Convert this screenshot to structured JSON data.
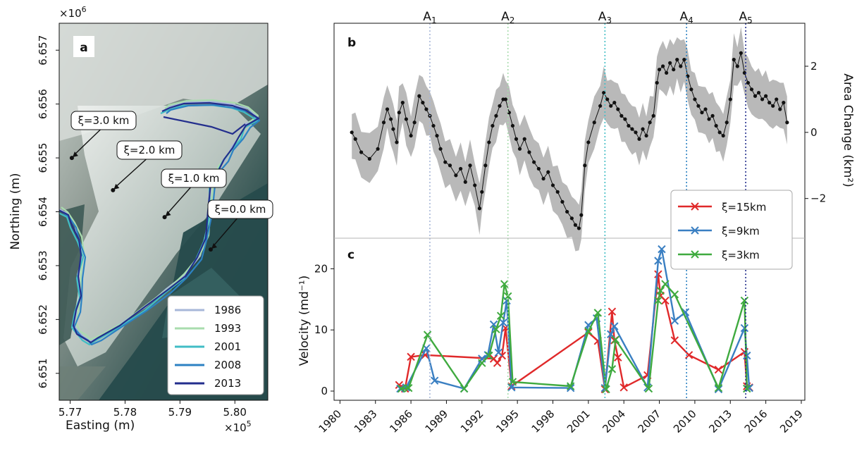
{
  "panel_a": {
    "label": "a",
    "xlabel": "Easting (m)",
    "ylabel": "Northing (m)",
    "x_multiplier": "×10^5",
    "y_multiplier": "×10^6",
    "x_ticks": [
      "5.77",
      "5.78",
      "5.79",
      "5.80"
    ],
    "y_ticks": [
      "6.651",
      "6.652",
      "6.653",
      "6.654",
      "6.655",
      "6.656",
      "6.657"
    ],
    "xlim": [
      5.768,
      5.806
    ],
    "ylim": [
      6.6505,
      6.6575
    ],
    "annotations": [
      {
        "text": "ξ=3.0 km",
        "point": [
          5.7703,
          6.655
        ]
      },
      {
        "text": "ξ=2.0 km",
        "point": [
          5.7778,
          6.6544
        ]
      },
      {
        "text": "ξ=1.0 km",
        "point": [
          5.7872,
          6.6539
        ]
      },
      {
        "text": "ξ=0.0 km",
        "point": [
          5.7956,
          6.6533
        ]
      }
    ],
    "legend": [
      {
        "label": "1986",
        "color": "#a7b7d9"
      },
      {
        "label": "1993",
        "color": "#a9dcae"
      },
      {
        "label": "2001",
        "color": "#41bdc5"
      },
      {
        "label": "2008",
        "color": "#2c82c3"
      },
      {
        "label": "2013",
        "color": "#232e8d"
      }
    ]
  },
  "chart_data": [
    {
      "type": "line",
      "panel": "b",
      "ylabel": "Area Change (km²)",
      "y_ticks": [
        "−2",
        "0",
        "2"
      ],
      "ylim": [
        -3.2,
        3.3
      ],
      "xlim": [
        1979.5,
        2019.3
      ],
      "grid": false,
      "series": [
        {
          "name": "",
          "color": "#111111",
          "band_color": "#b9b9b9",
          "x": [
            1981.0,
            1981.3,
            1981.8,
            1982.5,
            1983.2,
            1983.7,
            1984.0,
            1984.3,
            1984.5,
            1984.8,
            1985.0,
            1985.3,
            1985.6,
            1986.0,
            1986.3,
            1986.7,
            1987.0,
            1987.3,
            1987.6,
            1987.9,
            1988.2,
            1988.5,
            1988.9,
            1989.3,
            1989.8,
            1990.2,
            1990.6,
            1991.0,
            1991.4,
            1991.8,
            1992.0,
            1992.3,
            1992.6,
            1992.9,
            1993.2,
            1993.5,
            1993.8,
            1994.0,
            1994.3,
            1994.6,
            1994.9,
            1995.2,
            1995.6,
            1996.0,
            1996.4,
            1996.8,
            1997.2,
            1997.6,
            1998.0,
            1998.4,
            1998.8,
            1999.2,
            1999.6,
            1999.9,
            2000.2,
            2000.4,
            2000.7,
            2001.0,
            2001.5,
            2002.0,
            2002.3,
            2002.6,
            2002.9,
            2003.2,
            2003.5,
            2003.8,
            2004.1,
            2004.4,
            2004.7,
            2005.0,
            2005.3,
            2005.6,
            2005.9,
            2006.2,
            2006.5,
            2006.8,
            2007.0,
            2007.3,
            2007.6,
            2007.9,
            2008.2,
            2008.5,
            2008.8,
            2009.1,
            2009.4,
            2009.7,
            2010.0,
            2010.3,
            2010.6,
            2010.9,
            2011.2,
            2011.5,
            2011.8,
            2012.1,
            2012.4,
            2012.7,
            2013.0,
            2013.3,
            2013.6,
            2013.9,
            2014.2,
            2014.5,
            2014.8,
            2015.1,
            2015.4,
            2015.7,
            2016.0,
            2016.3,
            2016.6,
            2016.9,
            2017.2,
            2017.5,
            2017.8
          ],
          "y": [
            0.0,
            -0.2,
            -0.6,
            -0.8,
            -0.5,
            0.3,
            0.7,
            0.4,
            0.1,
            -0.3,
            0.6,
            0.9,
            0.4,
            -0.1,
            0.3,
            1.1,
            0.9,
            0.7,
            0.5,
            0.2,
            -0.1,
            -0.5,
            -0.9,
            -1.0,
            -1.3,
            -1.1,
            -1.5,
            -1.0,
            -1.6,
            -2.3,
            -1.8,
            -1.0,
            -0.3,
            0.2,
            0.5,
            0.8,
            1.0,
            1.0,
            0.6,
            0.2,
            -0.2,
            -0.5,
            -0.2,
            -0.6,
            -0.9,
            -1.1,
            -1.4,
            -1.2,
            -1.6,
            -1.8,
            -2.1,
            -2.4,
            -2.6,
            -2.8,
            -2.9,
            -2.5,
            -1.0,
            -0.3,
            0.3,
            0.8,
            1.2,
            1.0,
            0.8,
            0.9,
            0.7,
            0.5,
            0.4,
            0.2,
            0.1,
            0.0,
            -0.2,
            0.1,
            -0.1,
            0.3,
            0.5,
            1.5,
            1.9,
            2.0,
            1.8,
            2.1,
            1.9,
            2.2,
            2.0,
            2.2,
            1.7,
            1.3,
            1.0,
            0.8,
            0.6,
            0.7,
            0.4,
            0.5,
            0.2,
            0.0,
            -0.1,
            0.3,
            1.0,
            2.2,
            2.0,
            2.4,
            1.8,
            1.5,
            1.3,
            1.1,
            1.2,
            1.0,
            1.1,
            0.9,
            0.8,
            1.0,
            0.7,
            0.9,
            0.3
          ]
        }
      ]
    },
    {
      "type": "line",
      "panel": "c",
      "ylabel": "Velocity (md⁻¹)",
      "x_ticks": [
        "1980",
        "1983",
        "1986",
        "1989",
        "1992",
        "1995",
        "1998",
        "2001",
        "2004",
        "2007",
        "2010",
        "2013",
        "2016",
        "2019"
      ],
      "y_ticks": [
        "0",
        "10",
        "20"
      ],
      "ylim": [
        -1.5,
        25
      ],
      "xlim": [
        1979.5,
        2019.3
      ],
      "legend": "center-right",
      "series": [
        {
          "name": "ξ=15km",
          "color": "#e0292a",
          "x": [
            1985.0,
            1985.5,
            1986.0,
            1987.2,
            1993.0,
            1993.3,
            1993.7,
            1994.0,
            1994.5,
            2001.0,
            2001.8,
            2002.4,
            2003.0,
            2003.2,
            2003.5,
            2004.0,
            2006.0,
            2006.9,
            2007.1,
            2007.5,
            2008.3,
            2009.5,
            2012.0,
            2014.2,
            2014.4,
            2014.6
          ],
          "y": [
            1.0,
            0.4,
            5.6,
            5.9,
            5.3,
            4.6,
            5.8,
            10.3,
            0.8,
            9.6,
            8.2,
            0.3,
            13.0,
            8.3,
            5.5,
            0.6,
            2.6,
            19.1,
            15.6,
            14.8,
            8.3,
            5.9,
            3.5,
            6.4,
            0.8,
            0.6
          ]
        },
        {
          "name": "ξ=9km",
          "color": "#3a7fc2",
          "x": [
            1985.1,
            1985.6,
            1987.3,
            1988.0,
            1990.5,
            1992.0,
            1992.5,
            1993.0,
            1993.4,
            1993.8,
            1994.1,
            1994.5,
            1999.5,
            2001.0,
            2001.7,
            2002.4,
            2002.9,
            2003.2,
            2006.0,
            2006.9,
            2007.2,
            2008.3,
            2009.2,
            2012.0,
            2014.2,
            2014.4,
            2014.6
          ],
          "y": [
            0.4,
            0.6,
            7.0,
            1.7,
            0.4,
            5.3,
            5.9,
            10.9,
            6.3,
            11.2,
            14.8,
            0.6,
            0.5,
            10.8,
            11.9,
            0.5,
            9.3,
            10.6,
            0.6,
            21.3,
            23.2,
            11.5,
            12.9,
            0.3,
            10.3,
            5.8,
            0.5
          ]
        },
        {
          "name": "ξ=3km",
          "color": "#3faa3f",
          "x": [
            1985.2,
            1985.8,
            1987.4,
            1990.5,
            1992.0,
            1992.6,
            1993.2,
            1993.6,
            1993.9,
            1994.2,
            1994.6,
            1999.5,
            2001.0,
            2001.8,
            2002.5,
            2003.0,
            2003.3,
            2006.1,
            2006.9,
            2007.1,
            2007.5,
            2008.3,
            2012.0,
            2014.2,
            2014.4
          ],
          "y": [
            0.4,
            0.5,
            9.2,
            0.4,
            4.6,
            5.8,
            10.1,
            12.3,
            17.5,
            15.5,
            1.5,
            0.8,
            9.8,
            12.8,
            0.3,
            3.6,
            8.4,
            0.4,
            14.8,
            16.4,
            17.5,
            15.8,
            0.5,
            14.8,
            0.4
          ]
        }
      ]
    }
  ],
  "events": {
    "labels": [
      "A1",
      "A2",
      "A3",
      "A4",
      "A5"
    ],
    "years": [
      1987.6,
      1994.2,
      2002.4,
      2009.3,
      2014.3
    ],
    "colors": [
      "#a7b7d9",
      "#a9dcae",
      "#41bdc5",
      "#2c82c3",
      "#232e8d"
    ]
  },
  "panel_b_label": "b",
  "panel_c_label": "c"
}
